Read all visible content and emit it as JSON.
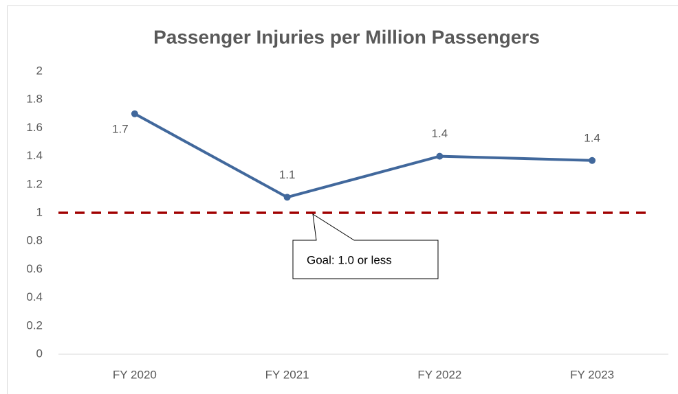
{
  "chart_data": {
    "type": "line",
    "title": "Passenger Injuries per Million Passengers",
    "categories": [
      "FY 2020",
      "FY 2021",
      "FY 2022",
      "FY 2023"
    ],
    "values": [
      1.7,
      1.11,
      1.4,
      1.37
    ],
    "value_labels": [
      "1.7",
      "1.1",
      "1.4",
      "1.4"
    ],
    "color": "#41689c",
    "goal": 1,
    "goal_color": "#a00000",
    "annotation": "Goal: 1.0 or less",
    "ylim": [
      0,
      2
    ],
    "yticks": [
      0,
      0.2,
      0.4,
      0.6,
      0.8,
      1,
      1.2,
      1.4,
      1.6,
      1.8,
      2
    ],
    "grid": false
  }
}
